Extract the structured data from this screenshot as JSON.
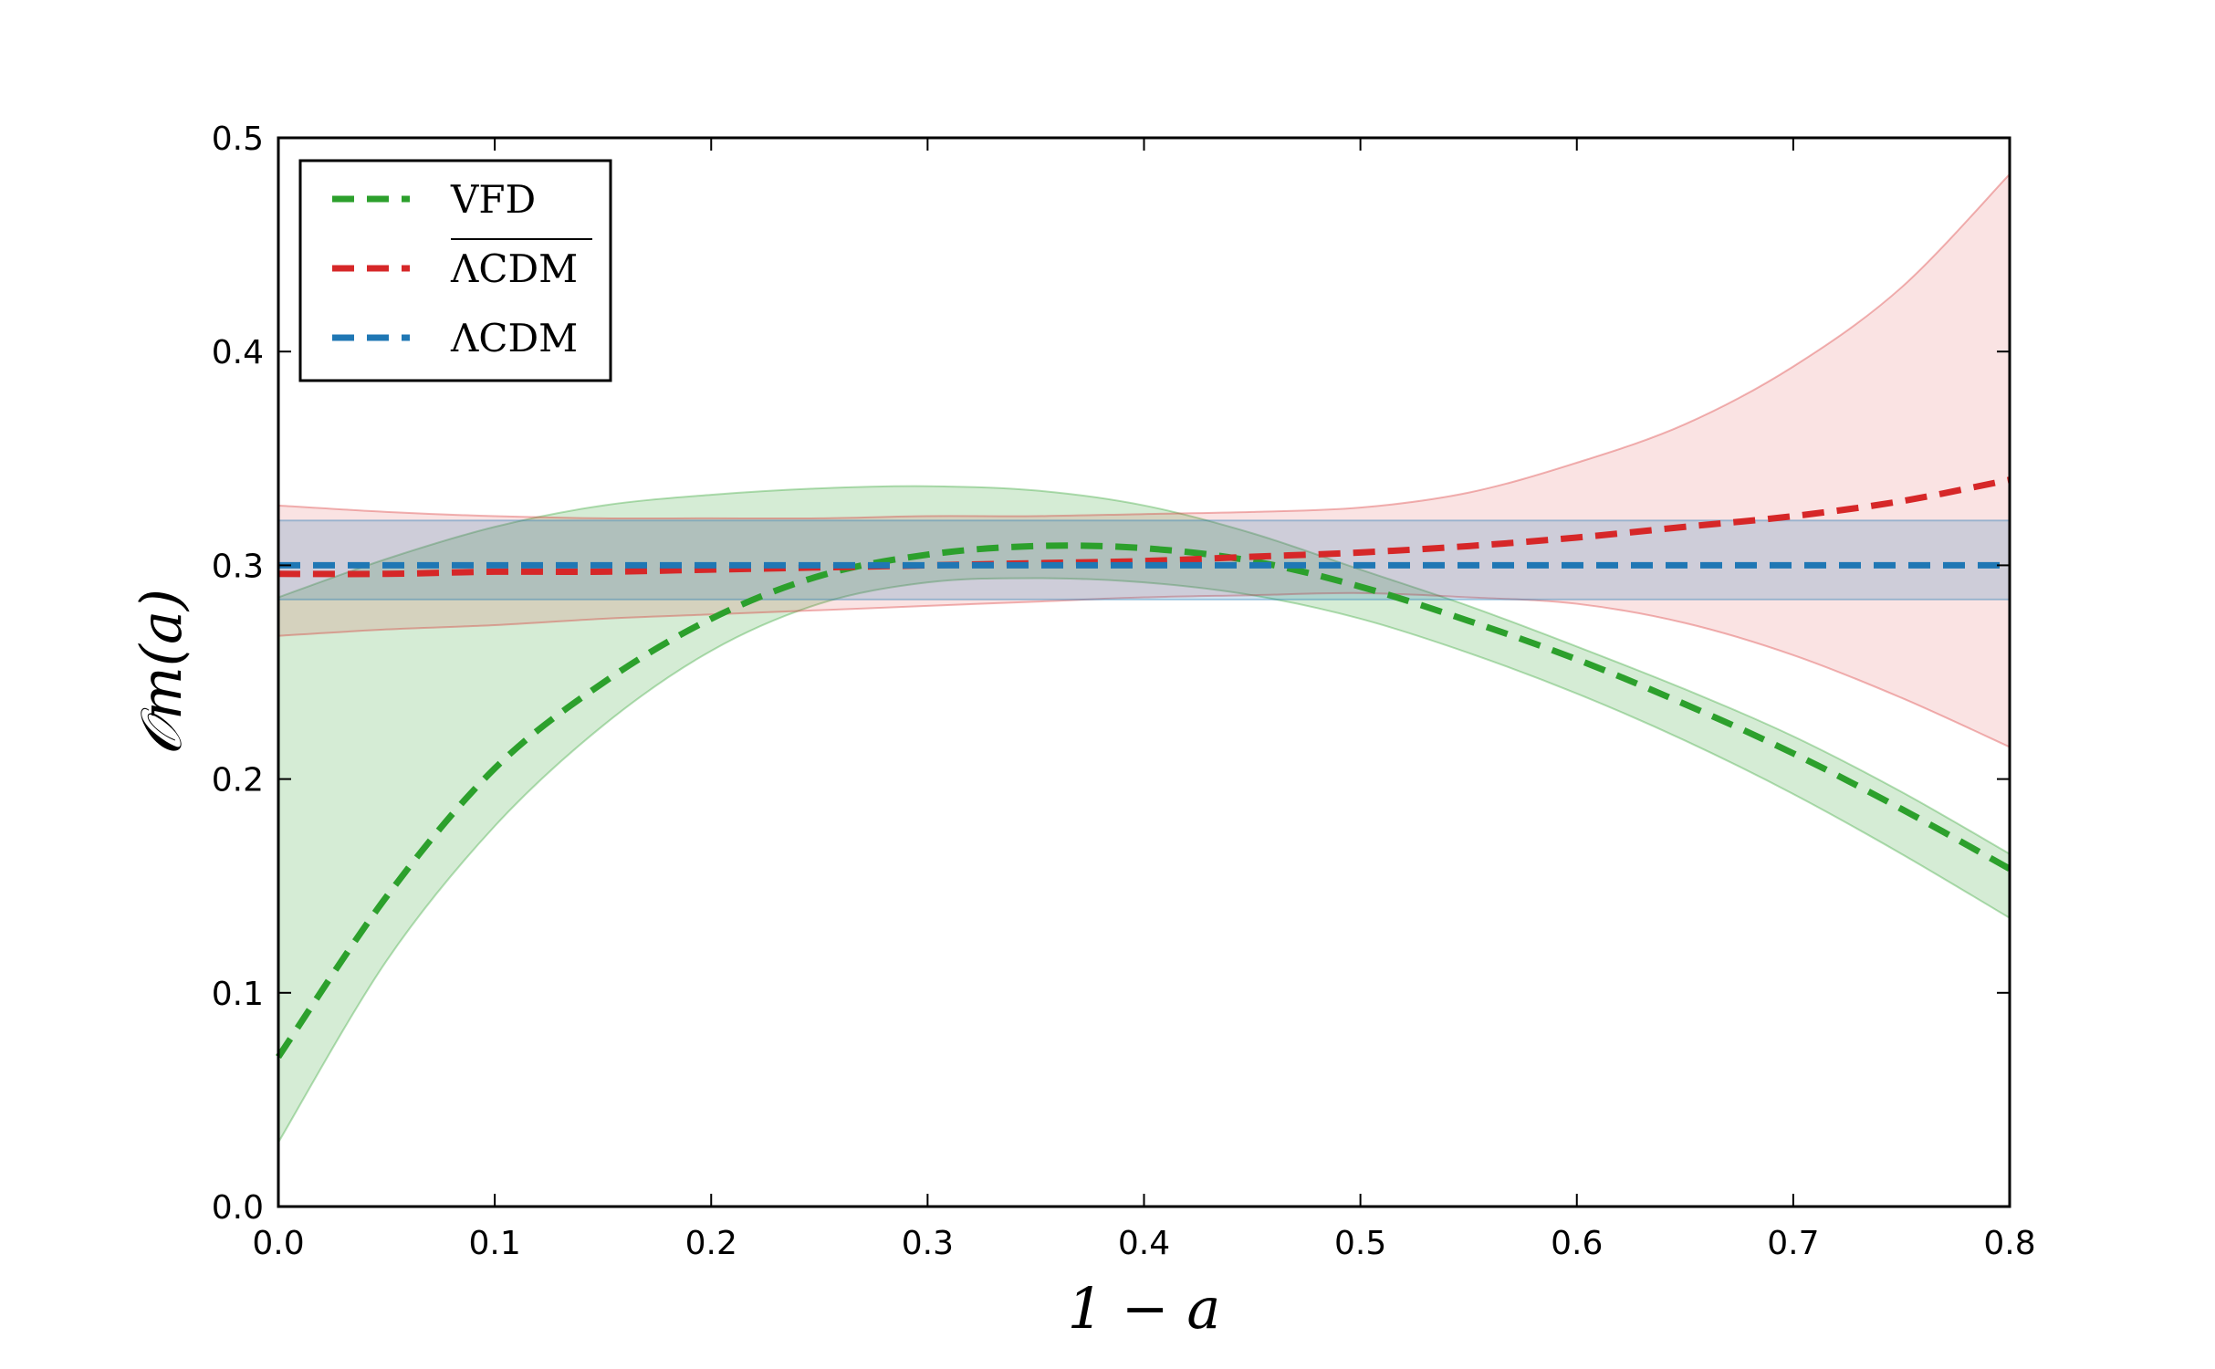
{
  "chart_data": {
    "type": "line",
    "title": "",
    "xlabel": "1 − a",
    "ylabel": "𝒪m(a)",
    "xlim": [
      0.0,
      0.8
    ],
    "ylim": [
      0.0,
      0.5
    ],
    "xticks": [
      "0.0",
      "0.1",
      "0.2",
      "0.3",
      "0.4",
      "0.5",
      "0.6",
      "0.7",
      "0.8"
    ],
    "yticks": [
      "0.0",
      "0.1",
      "0.2",
      "0.3",
      "0.4",
      "0.5"
    ],
    "grid": false,
    "legend_position": "top-left",
    "series": [
      {
        "name": "VFD",
        "color": "#2ca02c",
        "style": "dashed",
        "x": [
          0.0,
          0.05,
          0.1,
          0.15,
          0.2,
          0.25,
          0.3,
          0.35,
          0.4,
          0.45,
          0.5,
          0.55,
          0.6,
          0.65,
          0.7,
          0.75,
          0.8
        ],
        "y": [
          0.07,
          0.145,
          0.205,
          0.245,
          0.275,
          0.295,
          0.305,
          0.309,
          0.308,
          0.302,
          0.29,
          0.274,
          0.256,
          0.235,
          0.212,
          0.186,
          0.158
        ],
        "band_lower": [
          0.03,
          0.115,
          0.178,
          0.225,
          0.26,
          0.282,
          0.292,
          0.294,
          0.292,
          0.286,
          0.275,
          0.259,
          0.24,
          0.218,
          0.193,
          0.165,
          0.135
        ],
        "band_upper": [
          0.285,
          0.303,
          0.318,
          0.328,
          0.333,
          0.336,
          0.337,
          0.335,
          0.328,
          0.315,
          0.298,
          0.281,
          0.262,
          0.242,
          0.22,
          0.194,
          0.165
        ]
      },
      {
        "name": "ΛCDM (overline)",
        "label_text": "ΛCDM",
        "overline": true,
        "color": "#d62728",
        "style": "dashed",
        "x": [
          0.0,
          0.05,
          0.1,
          0.15,
          0.2,
          0.25,
          0.3,
          0.35,
          0.4,
          0.45,
          0.5,
          0.55,
          0.6,
          0.65,
          0.7,
          0.75,
          0.8
        ],
        "y": [
          0.296,
          0.296,
          0.297,
          0.297,
          0.298,
          0.299,
          0.3,
          0.301,
          0.302,
          0.304,
          0.306,
          0.309,
          0.313,
          0.318,
          0.323,
          0.33,
          0.34
        ],
        "band_lower": [
          0.267,
          0.27,
          0.272,
          0.275,
          0.277,
          0.279,
          0.281,
          0.283,
          0.285,
          0.286,
          0.287,
          0.285,
          0.282,
          0.273,
          0.258,
          0.238,
          0.215
        ],
        "band_upper": [
          0.328,
          0.325,
          0.323,
          0.322,
          0.322,
          0.322,
          0.323,
          0.323,
          0.324,
          0.325,
          0.327,
          0.334,
          0.348,
          0.366,
          0.393,
          0.43,
          0.483
        ]
      },
      {
        "name": "ΛCDM",
        "label_text": "ΛCDM",
        "overline": false,
        "color": "#1f77b4",
        "style": "dashed",
        "x": [
          0.0,
          0.8
        ],
        "y": [
          0.3,
          0.3
        ],
        "band_lower": [
          0.284,
          0.284
        ],
        "band_upper": [
          0.321,
          0.321
        ]
      }
    ]
  }
}
